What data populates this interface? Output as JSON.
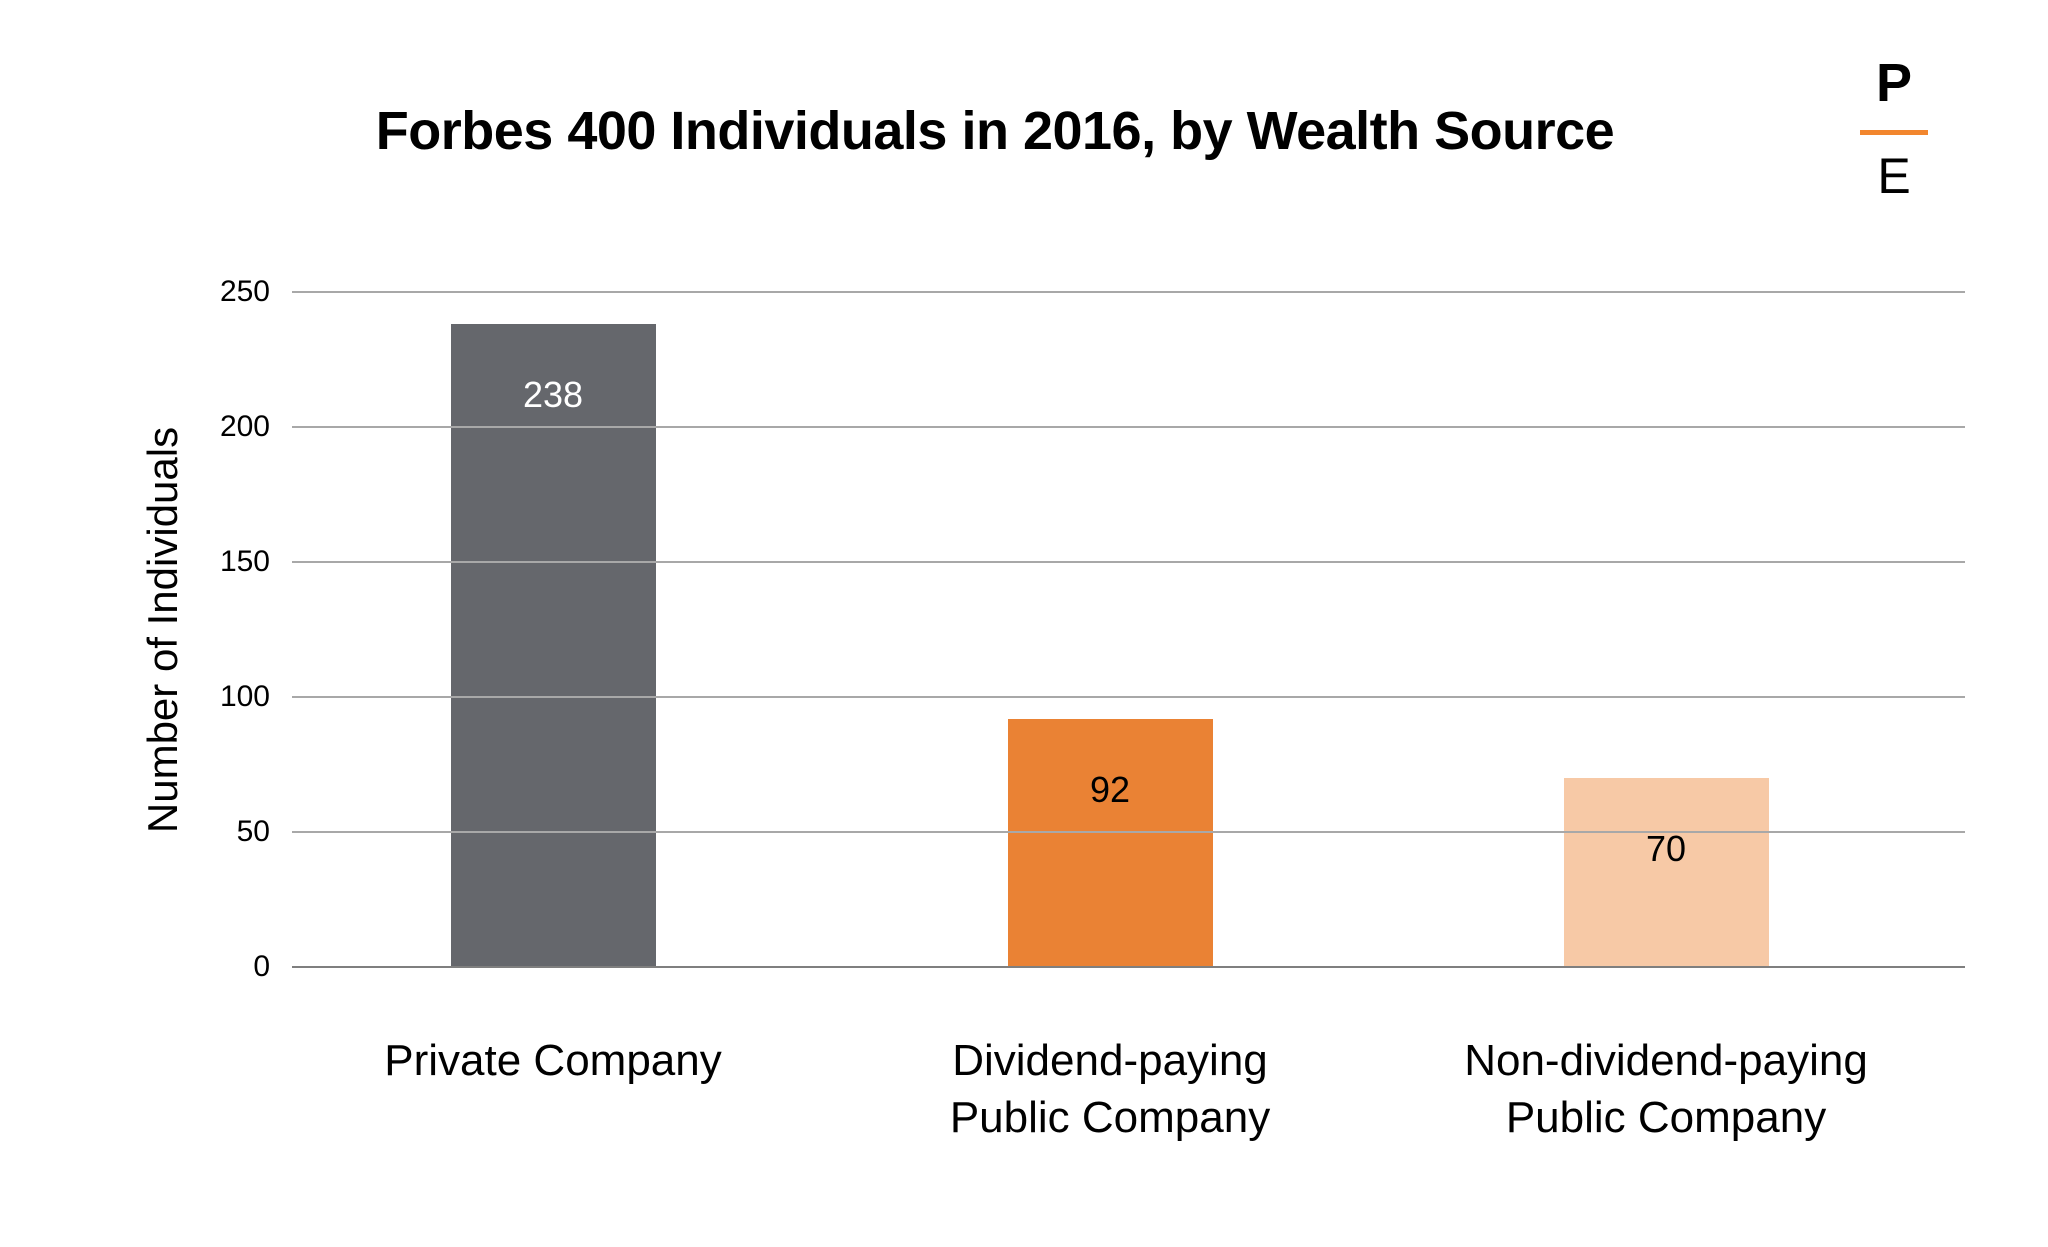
{
  "title": "Forbes 400 Individuals in 2016, by Wealth Source",
  "logo": {
    "top_letter": "P",
    "bottom_letter": "E",
    "divider_color": "#F2862E"
  },
  "y_axis": {
    "label": "Number of Individuals",
    "ticks": [
      "250",
      "200",
      "150",
      "100",
      "50",
      "0"
    ]
  },
  "category_labels": [
    {
      "line1": "Private Company",
      "line2": ""
    },
    {
      "line1": "Dividend-paying",
      "line2": "Public Company"
    },
    {
      "line1": "Non-dividend-paying",
      "line2": "Public Company"
    }
  ],
  "chart_data": {
    "type": "bar",
    "title": "Forbes 400 Individuals in 2016, by Wealth Source",
    "categories": [
      "Private Company",
      "Dividend-paying Public Company",
      "Non-dividend-paying Public Company"
    ],
    "values": [
      238,
      92,
      70
    ],
    "xlabel": "",
    "ylabel": "Number of Individuals",
    "ylim": [
      0,
      250
    ],
    "ytick_interval": 50,
    "grid": true,
    "legend": "none",
    "bar_colors": [
      "#65676C",
      "#EA8234",
      "#F7C9A6"
    ],
    "value_label_colors": [
      "#FFFFFF",
      "#000000",
      "#000000"
    ]
  },
  "colors": {
    "background": "#FFFFFF",
    "gridline": "#A8A8A8",
    "axis_line": "#7F7F7F",
    "text": "#000000",
    "accent_orange": "#F2862E"
  }
}
